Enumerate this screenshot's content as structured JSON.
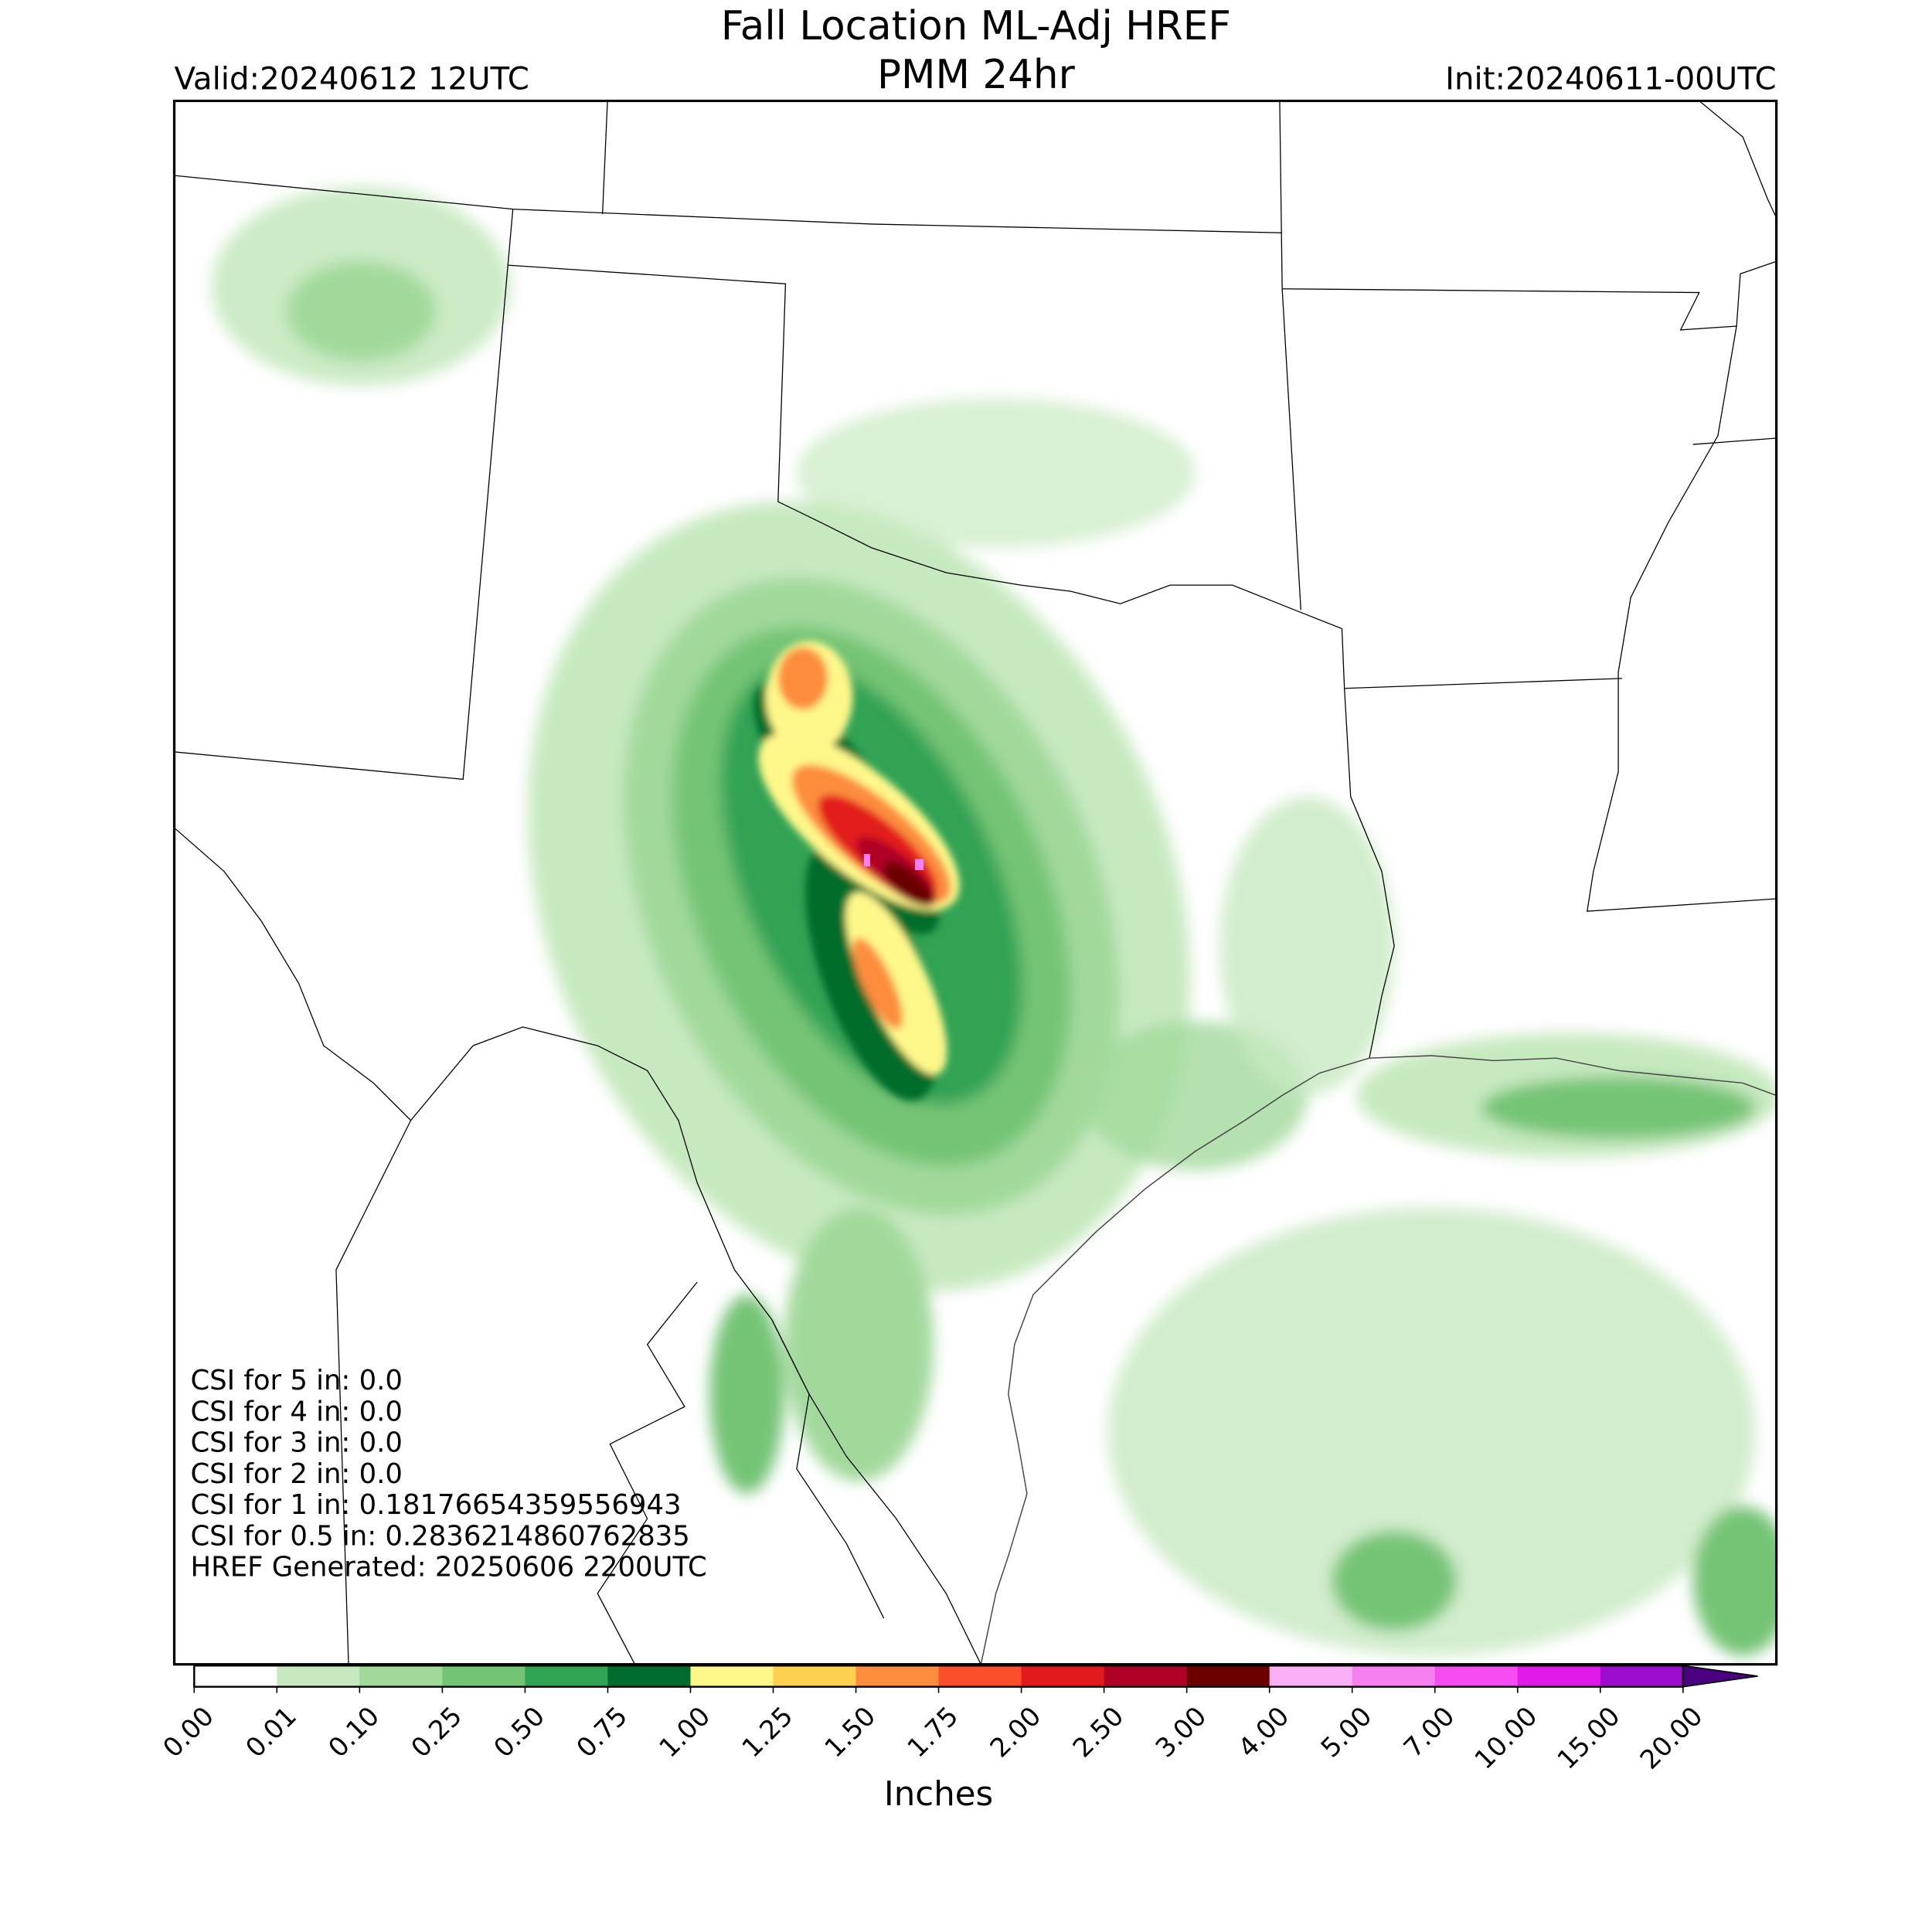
{
  "header": {
    "title": "Fall Location ML-Adj HREF",
    "subtitle": "PMM 24hr",
    "valid": "Valid:20240612 12UTC",
    "init": "Init:20240611-00UTC"
  },
  "annotations": [
    "CSI for 5 in: 0.0",
    "CSI for 4 in: 0.0",
    "CSI for 3 in: 0.0",
    "CSI for 2 in: 0.0",
    "CSI for 1 in: 0.18176654359556943",
    "CSI for 0.5 in: 0.2836214860762835",
    "HREF Generated: 20250606 2200UTC"
  ],
  "colorbar": {
    "label": "Inches",
    "ticks": [
      "0.00",
      "0.01",
      "0.10",
      "0.25",
      "0.50",
      "0.75",
      "1.00",
      "1.25",
      "1.50",
      "1.75",
      "2.00",
      "2.50",
      "3.00",
      "4.00",
      "5.00",
      "7.00",
      "10.00",
      "15.00",
      "20.00"
    ],
    "colors": [
      "#ffffff",
      "#c7e9c0",
      "#a1d99b",
      "#74c476",
      "#31a354",
      "#006d2c",
      "#fff78a",
      "#fed050",
      "#fd8d3c",
      "#fc4e2a",
      "#e31a1c",
      "#b10026",
      "#6b0000",
      "#f9aff5",
      "#f780f0",
      "#f44cf0",
      "#e01ae8",
      "#9e0ccf"
    ],
    "extend_color": "#4b0082"
  }
}
